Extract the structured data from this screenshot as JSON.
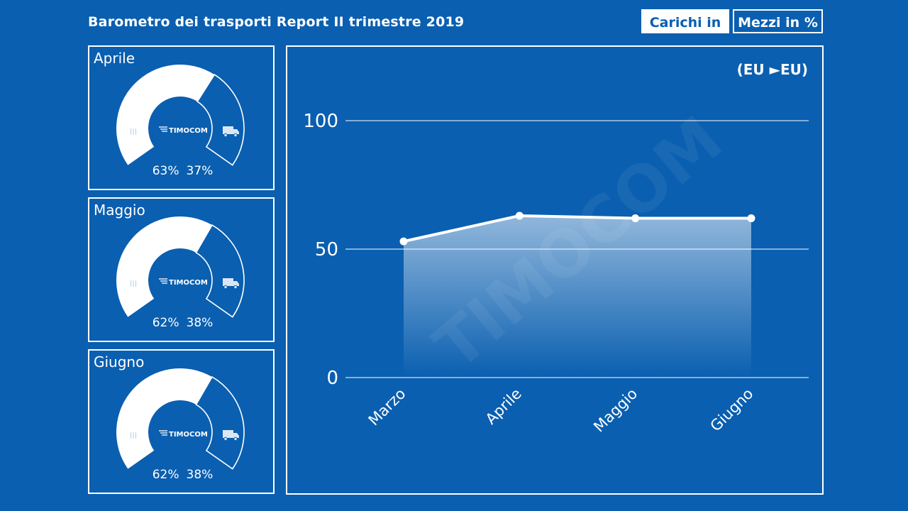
{
  "header": {
    "title": "Barometro dei trasporti Report II trimestre 2019",
    "legend_loads": "Carichi in %",
    "legend_trucks": "Mezzi in %"
  },
  "gauges": [
    {
      "month": "Aprile",
      "loads_pct": "63%",
      "trucks_pct": "37%",
      "loads_value": 63,
      "brand": "TIMOCOM"
    },
    {
      "month": "Maggio",
      "loads_pct": "62%",
      "trucks_pct": "38%",
      "loads_value": 62,
      "brand": "TIMOCOM"
    },
    {
      "month": "Giugno",
      "loads_pct": "62%",
      "trucks_pct": "38%",
      "loads_value": 62,
      "brand": "TIMOCOM"
    }
  ],
  "chart": {
    "scope_label": "(EU ►EU)",
    "watermark": "TIMOCOM"
  },
  "chart_data": {
    "type": "area",
    "categories": [
      "Marzo",
      "Aprile",
      "Maggio",
      "Giugno"
    ],
    "series": [
      {
        "values": [
          53,
          63,
          62,
          62
        ]
      }
    ],
    "yticks": [
      0,
      50,
      100
    ],
    "ylim": [
      0,
      100
    ],
    "grid": true,
    "colors": {
      "line": "#ffffff",
      "background": "#0a5fb0"
    }
  }
}
